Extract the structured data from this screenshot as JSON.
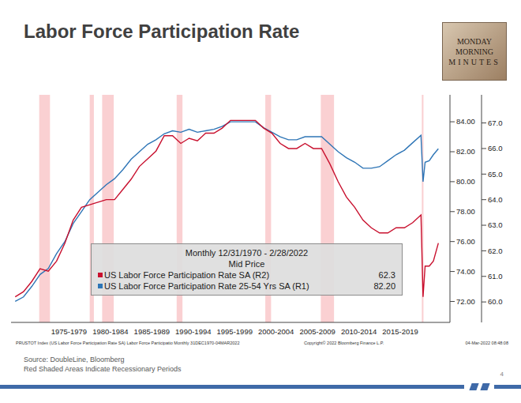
{
  "chart_data": {
    "type": "line",
    "title": "Labor Force Participation Rate",
    "x": [
      1971,
      1972,
      1973,
      1974,
      1975,
      1976,
      1977,
      1978,
      1979,
      1980,
      1981,
      1982,
      1983,
      1984,
      1985,
      1986,
      1987,
      1988,
      1989,
      1990,
      1991,
      1992,
      1993,
      1994,
      1995,
      1996,
      1997,
      1998,
      1999,
      2000,
      2001,
      2002,
      2003,
      2004,
      2005,
      2006,
      2007,
      2008,
      2009,
      2010,
      2011,
      2012,
      2013,
      2014,
      2015,
      2016,
      2017,
      2018,
      2019,
      2020,
      2020.25,
      2020.5,
      2021,
      2021.5,
      2022.1
    ],
    "series": [
      {
        "name": "US Labor Force Participation Rate SA  (R2)",
        "color": "#c8102e",
        "axis": "y2",
        "last_label": "62.3",
        "values": [
          60.2,
          60.4,
          60.8,
          61.3,
          61.2,
          61.6,
          62.3,
          63.2,
          63.7,
          63.8,
          63.9,
          64.0,
          64.0,
          64.4,
          64.8,
          65.3,
          65.6,
          65.9,
          66.5,
          66.5,
          66.2,
          66.4,
          66.3,
          66.6,
          66.6,
          66.8,
          67.1,
          67.1,
          67.1,
          67.1,
          66.8,
          66.6,
          66.2,
          66.0,
          66.0,
          66.2,
          66.0,
          66.0,
          65.4,
          64.7,
          64.1,
          63.7,
          63.2,
          62.9,
          62.7,
          62.7,
          62.9,
          62.9,
          63.1,
          63.4,
          60.2,
          61.4,
          61.4,
          61.6,
          62.3
        ]
      },
      {
        "name": "US Labor Force Participation Rate 25-54 Yrs SA  (R1)",
        "color": "#2e75b6",
        "axis": "y",
        "last_label": "82.20",
        "values": [
          72.0,
          72.3,
          73.0,
          73.8,
          74.2,
          75.2,
          76.0,
          77.2,
          78.0,
          78.8,
          79.3,
          79.8,
          80.2,
          80.8,
          81.5,
          82.0,
          82.5,
          82.8,
          83.2,
          83.4,
          83.3,
          83.5,
          83.3,
          83.4,
          83.5,
          83.7,
          84.0,
          84.0,
          84.0,
          84.0,
          83.6,
          83.3,
          83.0,
          82.8,
          82.8,
          83.0,
          83.0,
          83.0,
          82.5,
          82.0,
          81.6,
          81.3,
          80.9,
          80.9,
          81.0,
          81.4,
          81.8,
          82.1,
          82.6,
          83.1,
          80.0,
          81.3,
          81.4,
          81.8,
          82.2
        ]
      }
    ],
    "xlim": [
      1970.5,
      2023.5
    ],
    "xticks": [
      {
        "value": 1977.5,
        "label": "1975-1979"
      },
      {
        "value": 1982.5,
        "label": "1980-1984"
      },
      {
        "value": 1987.5,
        "label": "1985-1989"
      },
      {
        "value": 1992.5,
        "label": "1990-1994"
      },
      {
        "value": 1997.5,
        "label": "1995-1999"
      },
      {
        "value": 2002.5,
        "label": "2000-2004"
      },
      {
        "value": 2007.5,
        "label": "2005-2009"
      },
      {
        "value": 2012.5,
        "label": "2010-2014"
      },
      {
        "value": 2017.5,
        "label": "2015-2019"
      }
    ],
    "ylim": [
      70.6,
      85.8
    ],
    "yticks": [
      {
        "value": 72,
        "label": "72.00"
      },
      {
        "value": 74,
        "label": "74.00"
      },
      {
        "value": 76,
        "label": "76.00"
      },
      {
        "value": 78,
        "label": "78.00"
      },
      {
        "value": 80,
        "label": "80.00"
      },
      {
        "value": 82,
        "label": "82.00"
      },
      {
        "value": 84,
        "label": "84.00"
      }
    ],
    "y2lim": [
      59.2,
      68.1
    ],
    "y2ticks": [
      {
        "value": 60,
        "label": "60.0"
      },
      {
        "value": 61,
        "label": "61.0"
      },
      {
        "value": 62,
        "label": "62.0"
      },
      {
        "value": 63,
        "label": "63.0"
      },
      {
        "value": 64,
        "label": "64.0"
      },
      {
        "value": 65,
        "label": "65.0"
      },
      {
        "value": 66,
        "label": "66.0"
      },
      {
        "value": 67,
        "label": "67.0"
      }
    ],
    "recessions": [
      [
        1973.9,
        1975.2
      ],
      [
        1980.0,
        1980.5
      ],
      [
        1981.5,
        1982.9
      ],
      [
        1990.5,
        1991.2
      ],
      [
        2001.2,
        2001.9
      ],
      [
        2007.9,
        2009.5
      ],
      [
        2020.1,
        2020.3
      ]
    ],
    "legend": "center",
    "legend_header": [
      "Monthly 12/31/1970 - 2/28/2022",
      "Mid Price"
    ],
    "grid": false
  },
  "logo": [
    "MONDAY",
    "MORNING",
    "MINUTES"
  ],
  "footer": {
    "ticker": "PRUSTOT Index (US Labor Force Participation Rate SA) Labor Force Participatio  Monthly 31DEC1970-04MAR2022",
    "copyright": "Copyright© 2022 Bloomberg Finance L.P.",
    "timestamp": "04-Mar-2022 08:48:08"
  },
  "source": [
    "Source: DoubleLine, Bloomberg",
    "Red Shaded Areas Indicate Recessionary Periods"
  ],
  "page": "4"
}
